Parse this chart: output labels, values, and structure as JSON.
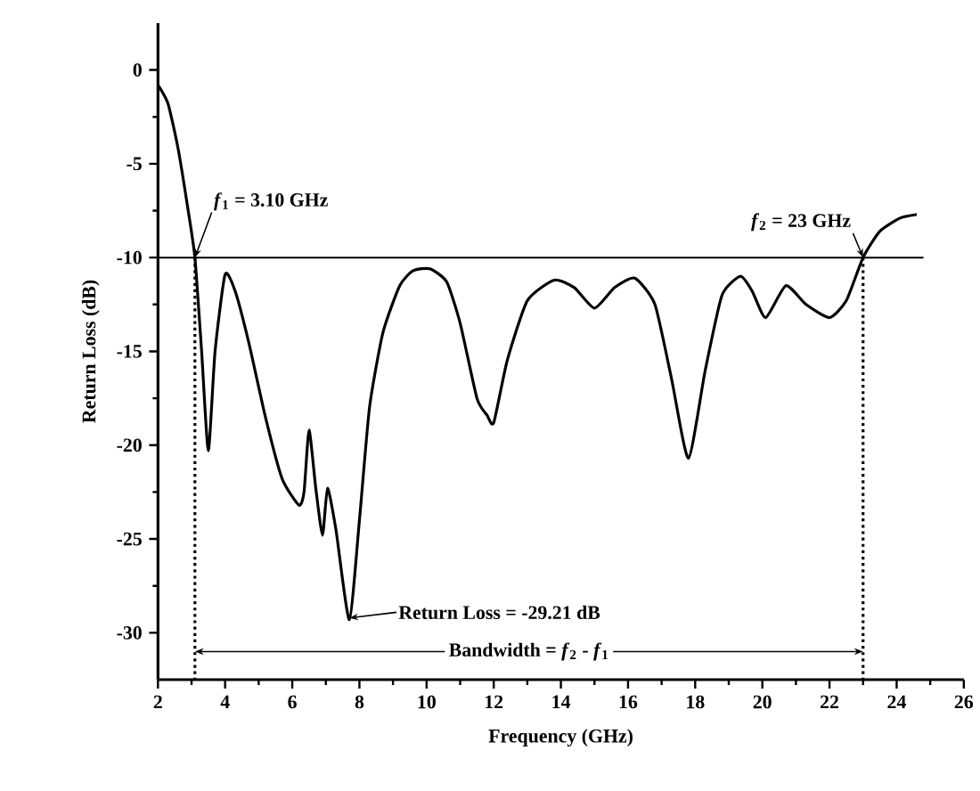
{
  "chart_data": {
    "type": "line",
    "xlabel": "Frequency (GHz)",
    "ylabel": "Return Loss (dB)",
    "xlim": [
      2,
      26
    ],
    "xticks": [
      2,
      4,
      6,
      8,
      10,
      12,
      14,
      16,
      18,
      20,
      22,
      24,
      26
    ],
    "ylim": [
      -32.5,
      2.5
    ],
    "yticks": [
      0,
      -5,
      -10,
      -15,
      -20,
      -25,
      -30
    ],
    "grid": false,
    "marker": "none",
    "line_style": "solid",
    "series": [
      {
        "color": "#000000",
        "x": [
          2,
          2.3,
          2.6,
          2.9,
          3.1,
          3.3,
          3.5,
          3.7,
          4.0,
          4.3,
          4.7,
          5.2,
          5.7,
          6.2,
          6.35,
          6.5,
          6.7,
          6.9,
          7.05,
          7.3,
          7.7,
          8.0,
          8.3,
          8.7,
          9.2,
          9.6,
          10.1,
          10.6,
          11.0,
          11.5,
          11.8,
          12.0,
          12.4,
          13.0,
          13.8,
          14.4,
          15.0,
          15.6,
          16.2,
          16.8,
          17.3,
          17.8,
          18.3,
          18.8,
          19.35,
          19.7,
          20.1,
          20.7,
          21.3,
          22.0,
          22.5,
          23.0,
          23.5,
          24.1,
          24.6
        ],
        "values": [
          -0.8,
          -1.8,
          -4.2,
          -7.5,
          -10,
          -15,
          -20.3,
          -15,
          -10.9,
          -11.8,
          -14.5,
          -18.5,
          -21.8,
          -23.2,
          -22.5,
          -19.2,
          -22.3,
          -24.8,
          -22.3,
          -24.5,
          -29.3,
          -24,
          -18,
          -14,
          -11.5,
          -10.7,
          -10.6,
          -11.3,
          -13.5,
          -17.5,
          -18.4,
          -18.8,
          -15.5,
          -12.3,
          -11.2,
          -11.6,
          -12.7,
          -11.6,
          -11.1,
          -12.5,
          -16.5,
          -20.7,
          -16,
          -12,
          -11,
          -11.8,
          -13.2,
          -11.5,
          -12.5,
          -13.2,
          -12.3,
          -10,
          -8.6,
          -7.9,
          -7.7
        ]
      }
    ],
    "ref_lines": [
      {
        "axis": "y",
        "value": -10,
        "line_style": "solid"
      },
      {
        "axis": "x",
        "value": 3.1,
        "line_style": "dotted"
      },
      {
        "axis": "x",
        "value": 23,
        "line_style": "dotted"
      }
    ],
    "annotations": [
      {
        "text": "*f*$_{1}$ = 3.10 GHz",
        "x": 3.1,
        "y": -10
      },
      {
        "text": "*f*$_{2}$ = 23 GHz",
        "x": 23,
        "y": -10
      },
      {
        "text": "Return Loss = -29.21 dB",
        "x": 7.7,
        "y": -29.21
      },
      {
        "text": "Bandwidth = *f*$_{2}$ - *f*$_{1}$",
        "x": 3.1,
        "y": -31
      }
    ]
  }
}
